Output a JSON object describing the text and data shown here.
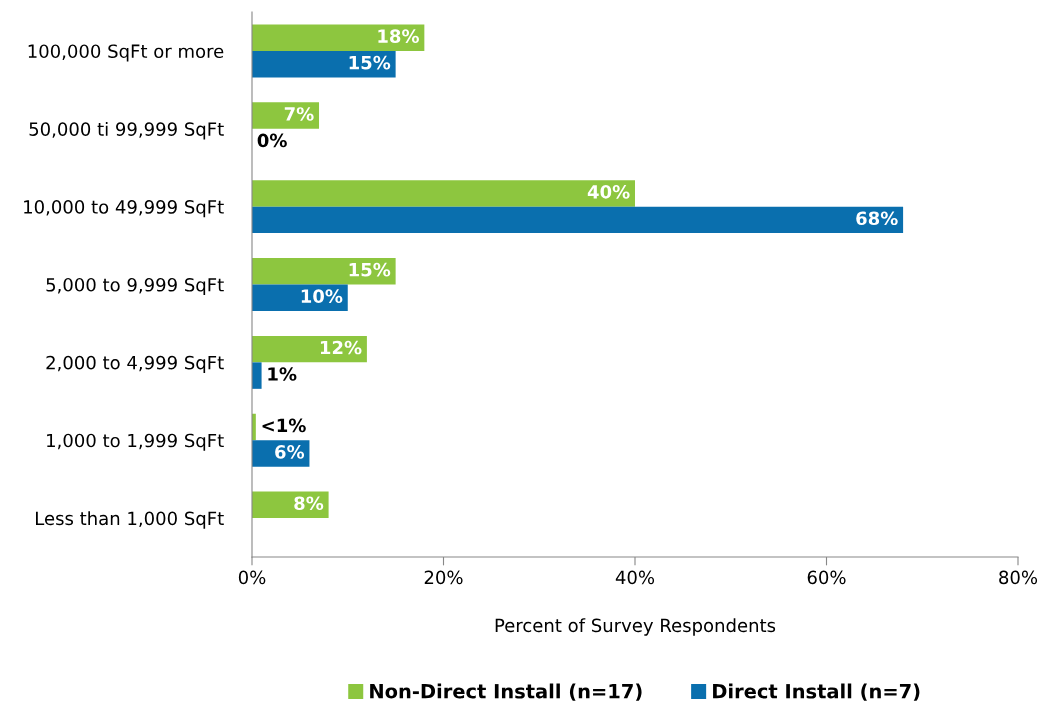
{
  "chart_data": {
    "type": "bar",
    "orientation": "horizontal",
    "xlabel": "Percent of Survey Respondents",
    "categories": [
      "100,000 SqFt or more",
      "50,000 ti 99,999 SqFt",
      "10,000 to 49,999 SqFt",
      "5,000 to 9,999 SqFt",
      "2,000 to 4,999 SqFt",
      "1,000 to 1,999 SqFt",
      "Less than 1,000 SqFt"
    ],
    "series": [
      {
        "name": "Non-Direct Install (n=17)",
        "color": "#8dc63f",
        "values": [
          18,
          7,
          40,
          15,
          12,
          0.4,
          8
        ],
        "value_labels": [
          "18%",
          "7%",
          "40%",
          "15%",
          "12%",
          "<1%",
          "8%"
        ]
      },
      {
        "name": "Direct Install (n=7)",
        "color": "#0a6fae",
        "values": [
          15,
          0,
          68,
          10,
          1,
          6,
          null
        ],
        "value_labels": [
          "15%",
          "0%",
          "68%",
          "10%",
          "1%",
          "6%",
          null
        ]
      }
    ],
    "xlim": [
      0,
      80
    ],
    "xticks": [
      {
        "value": 0,
        "label": "0%"
      },
      {
        "value": 20,
        "label": "20%"
      },
      {
        "value": 40,
        "label": "40%"
      },
      {
        "value": 60,
        "label": "60%"
      },
      {
        "value": 80,
        "label": "80%"
      }
    ],
    "grid": false,
    "legend": "bottom"
  }
}
